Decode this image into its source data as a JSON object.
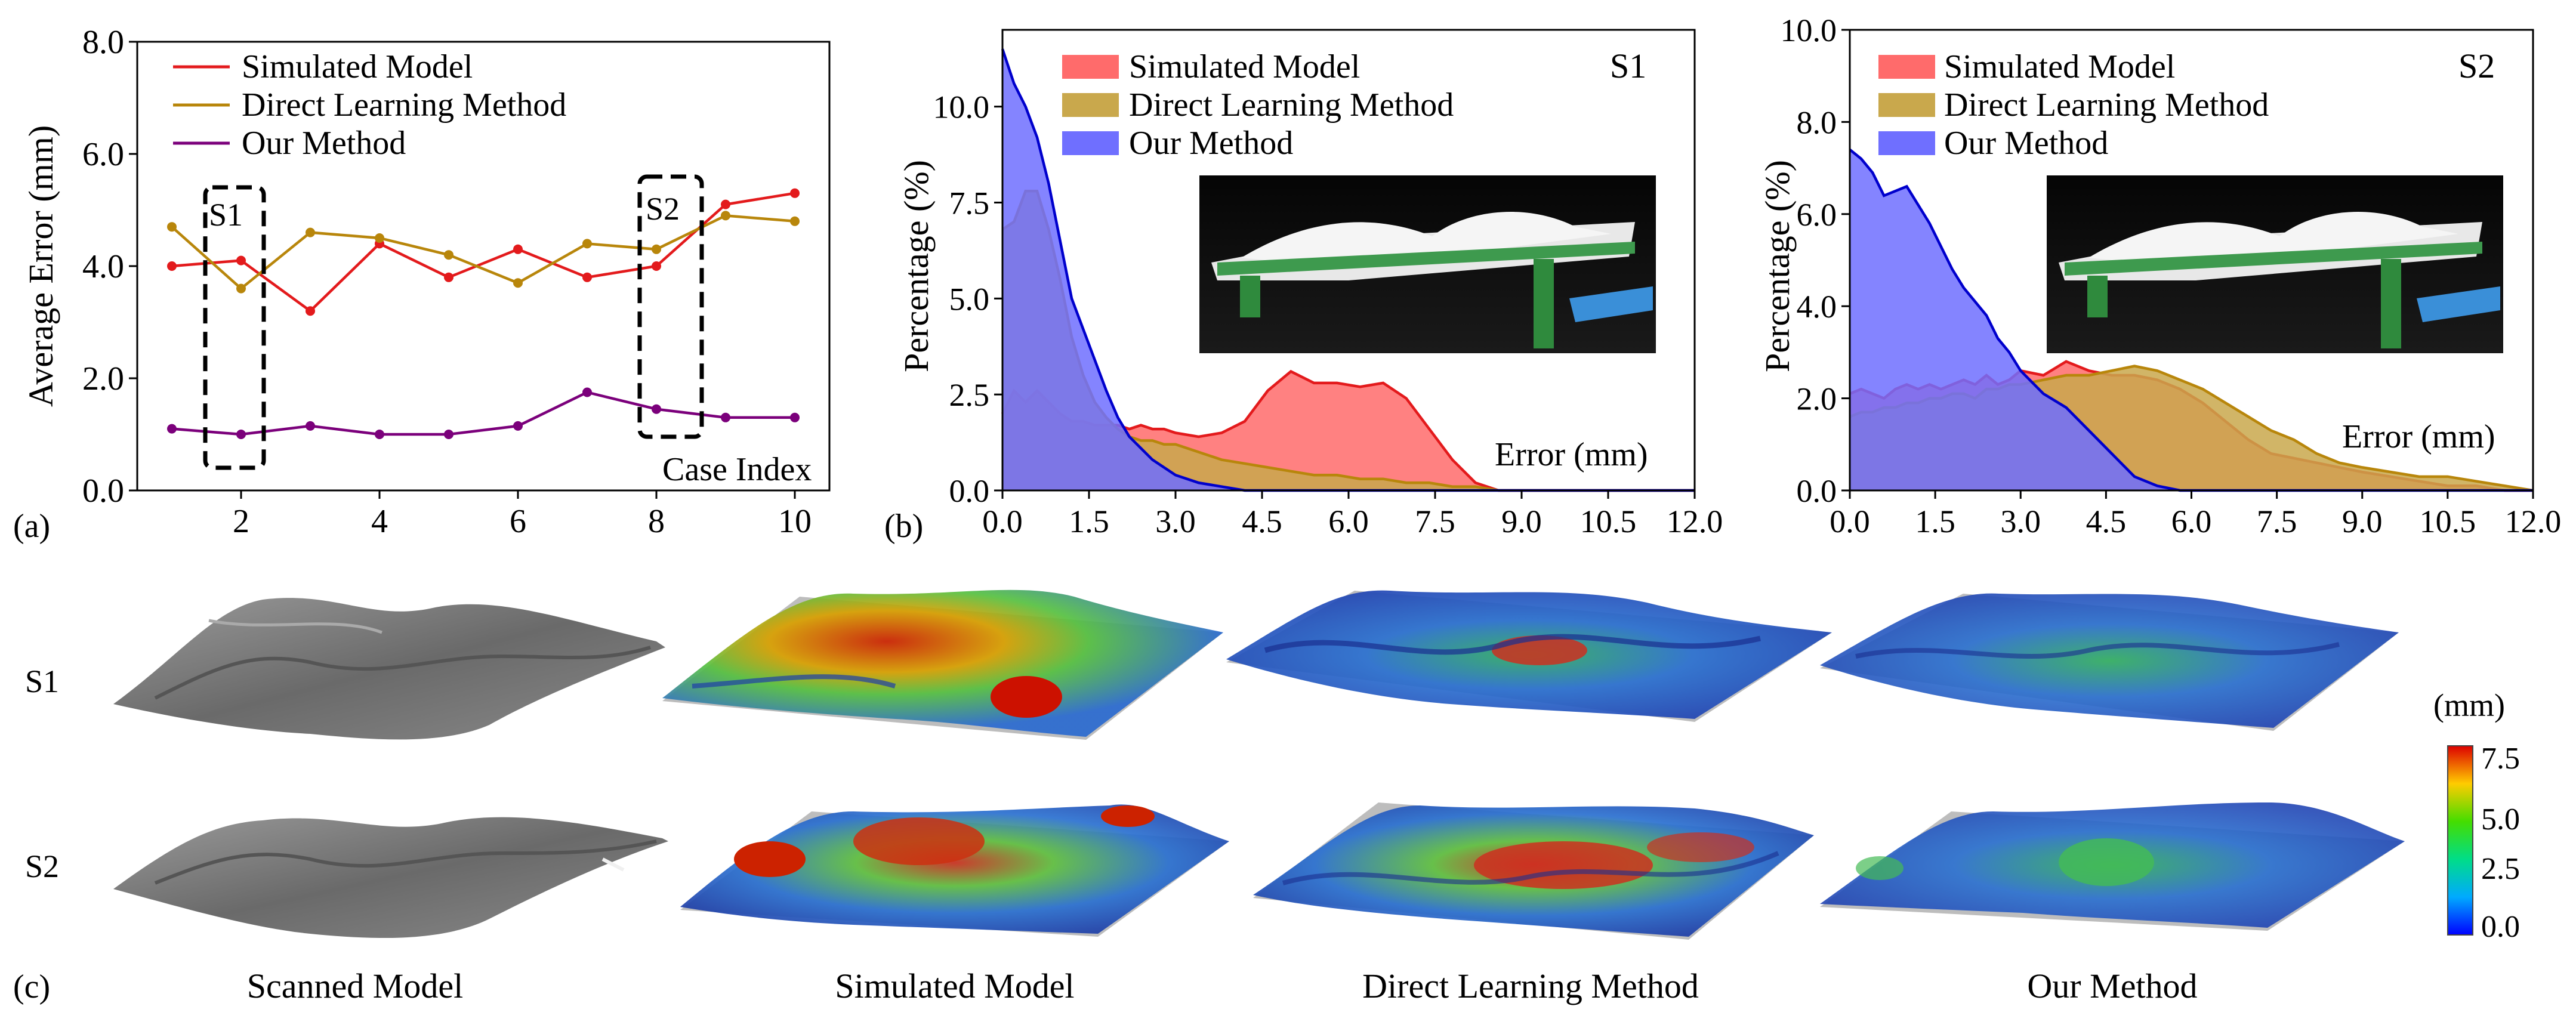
{
  "panel_labels": {
    "a": "(a)",
    "b": "(b)",
    "c": "(c)"
  },
  "colors": {
    "simulated": "#e31a1c",
    "direct": "#b8860b",
    "ours": "#7b007b",
    "hist_simulated": "#ff6b6b",
    "hist_direct": "#c9a84c",
    "hist_ours": "#6f6fff",
    "hist_ours_line": "#0000cc"
  },
  "chart_data": [
    {
      "type": "line",
      "ylabel": "Average Error (mm)",
      "xlabel": "Case Index",
      "x": [
        1,
        2,
        3,
        4,
        5,
        6,
        7,
        8,
        9,
        10
      ],
      "xlim": [
        0.5,
        10.5
      ],
      "ylim": [
        0,
        8
      ],
      "xticks": [
        2,
        4,
        6,
        8,
        10
      ],
      "yticks": [
        "0.0",
        "2.0",
        "4.0",
        "6.0",
        "8.0"
      ],
      "series": [
        {
          "name": "Simulated Model",
          "values": [
            4.0,
            4.1,
            3.2,
            4.4,
            3.8,
            4.3,
            3.8,
            4.0,
            5.1,
            5.3
          ]
        },
        {
          "name": "Direct Learning Method",
          "values": [
            4.7,
            3.6,
            4.6,
            4.5,
            4.2,
            3.7,
            4.4,
            4.3,
            4.9,
            4.8
          ]
        },
        {
          "name": "Our Method",
          "values": [
            1.1,
            1.0,
            1.15,
            1.0,
            1.0,
            1.15,
            1.75,
            1.45,
            1.3,
            1.3
          ]
        }
      ],
      "annotations": [
        {
          "text": "S1",
          "x_range": [
            1.65,
            2.4
          ],
          "y_range": [
            0.35,
            5.5
          ]
        },
        {
          "text": "S2",
          "x_range": [
            7.6,
            8.45
          ],
          "y_range": [
            1.0,
            5.5
          ]
        }
      ],
      "legend": "top-left"
    },
    {
      "type": "area",
      "title": "S1",
      "ylabel": "Percentage (%)",
      "xlabel": "Error (mm)",
      "xlim": [
        0,
        12
      ],
      "ylim": [
        0,
        12
      ],
      "xticks": [
        "0.0",
        "1.5",
        "3.0",
        "4.5",
        "6.0",
        "7.5",
        "9.0",
        "10.5",
        "12.0"
      ],
      "yticks": [
        "0.0",
        "2.5",
        "5.0",
        "7.5",
        "10.0"
      ],
      "x": [
        0,
        0.2,
        0.4,
        0.6,
        0.8,
        1.0,
        1.2,
        1.4,
        1.6,
        1.8,
        2.0,
        2.2,
        2.4,
        2.6,
        2.8,
        3.0,
        3.4,
        3.8,
        4.2,
        4.6,
        5.0,
        5.4,
        5.8,
        6.2,
        6.6,
        7.0,
        7.4,
        7.8,
        8.2,
        8.6,
        9.0,
        10.0,
        11.0,
        12.0
      ],
      "series": [
        {
          "name": "Simulated Model",
          "values": [
            2.0,
            2.6,
            2.3,
            2.6,
            2.3,
            2.0,
            1.8,
            1.8,
            1.7,
            1.7,
            1.7,
            1.6,
            1.7,
            1.6,
            1.6,
            1.5,
            1.4,
            1.5,
            1.8,
            2.6,
            3.1,
            2.8,
            2.8,
            2.7,
            2.8,
            2.4,
            1.6,
            0.8,
            0.2,
            0.0,
            0.0,
            0.0,
            0.0,
            0.0
          ]
        },
        {
          "name": "Direct Learning Method",
          "values": [
            6.8,
            7.0,
            7.8,
            7.8,
            6.8,
            5.5,
            4.0,
            3.0,
            2.3,
            1.9,
            1.6,
            1.4,
            1.3,
            1.3,
            1.2,
            1.2,
            1.0,
            0.8,
            0.7,
            0.6,
            0.5,
            0.4,
            0.4,
            0.3,
            0.3,
            0.2,
            0.2,
            0.1,
            0.1,
            0.0,
            0.0,
            0.0,
            0.0,
            0.0
          ]
        },
        {
          "name": "Our Method",
          "values": [
            11.5,
            10.6,
            10.0,
            9.2,
            8.0,
            6.5,
            5.0,
            4.2,
            3.4,
            2.6,
            1.9,
            1.4,
            1.1,
            0.8,
            0.6,
            0.4,
            0.2,
            0.1,
            0.0,
            0.0,
            0.0,
            0.0,
            0.0,
            0.0,
            0.0,
            0.0,
            0.0,
            0.0,
            0.0,
            0.0,
            0.0,
            0.0,
            0.0,
            0.0
          ]
        }
      ],
      "legend": "top-left"
    },
    {
      "type": "area",
      "title": "S2",
      "ylabel": "Percentage (%)",
      "xlabel": "Error (mm)",
      "xlim": [
        0,
        12
      ],
      "ylim": [
        0,
        10
      ],
      "xticks": [
        "0.0",
        "1.5",
        "3.0",
        "4.5",
        "6.0",
        "7.5",
        "9.0",
        "10.5",
        "12.0"
      ],
      "yticks": [
        "0.0",
        "2.0",
        "4.0",
        "6.0",
        "8.0",
        "10.0"
      ],
      "x": [
        0,
        0.2,
        0.4,
        0.6,
        0.8,
        1.0,
        1.2,
        1.4,
        1.6,
        1.8,
        2.0,
        2.2,
        2.4,
        2.6,
        2.8,
        3.0,
        3.4,
        3.8,
        4.2,
        4.6,
        5.0,
        5.4,
        5.8,
        6.2,
        6.6,
        7.0,
        7.4,
        7.8,
        8.2,
        8.6,
        9.0,
        9.5,
        10.0,
        10.5,
        11.0,
        11.5,
        12.0
      ],
      "series": [
        {
          "name": "Simulated Model",
          "values": [
            2.1,
            2.2,
            2.1,
            2.0,
            2.2,
            2.3,
            2.2,
            2.3,
            2.2,
            2.3,
            2.4,
            2.3,
            2.5,
            2.3,
            2.4,
            2.6,
            2.5,
            2.8,
            2.6,
            2.5,
            2.5,
            2.4,
            2.2,
            1.9,
            1.5,
            1.1,
            0.8,
            0.7,
            0.6,
            0.5,
            0.4,
            0.3,
            0.2,
            0.1,
            0.1,
            0.0,
            0.0
          ]
        },
        {
          "name": "Direct Learning Method",
          "values": [
            1.6,
            1.7,
            1.7,
            1.8,
            1.8,
            1.9,
            1.9,
            2.0,
            2.0,
            2.1,
            2.1,
            2.0,
            2.2,
            2.2,
            2.3,
            2.3,
            2.4,
            2.5,
            2.5,
            2.6,
            2.7,
            2.6,
            2.4,
            2.2,
            1.9,
            1.6,
            1.3,
            1.1,
            0.8,
            0.6,
            0.5,
            0.4,
            0.3,
            0.3,
            0.2,
            0.1,
            0.0
          ]
        },
        {
          "name": "Our Method",
          "values": [
            7.4,
            7.2,
            6.9,
            6.4,
            6.5,
            6.6,
            6.2,
            5.8,
            5.3,
            4.8,
            4.4,
            4.1,
            3.8,
            3.3,
            3.0,
            2.6,
            2.1,
            1.8,
            1.3,
            0.8,
            0.3,
            0.1,
            0.0,
            0.0,
            0.0,
            0.0,
            0.0,
            0.0,
            0.0,
            0.0,
            0.0,
            0.0,
            0.0,
            0.0,
            0.0,
            0.0,
            0.0
          ]
        }
      ],
      "legend": "top-left"
    }
  ],
  "surfaces": {
    "row_labels": [
      "S1",
      "S2"
    ],
    "column_captions": [
      "Scanned Model",
      "Simulated Model",
      "Direct Learning Method",
      "Our Method"
    ]
  },
  "colorbar": {
    "unit": "(mm)",
    "ticks": [
      "0.0",
      "2.5",
      "5.0",
      "7.5"
    ],
    "range": [
      0,
      7.5
    ]
  }
}
